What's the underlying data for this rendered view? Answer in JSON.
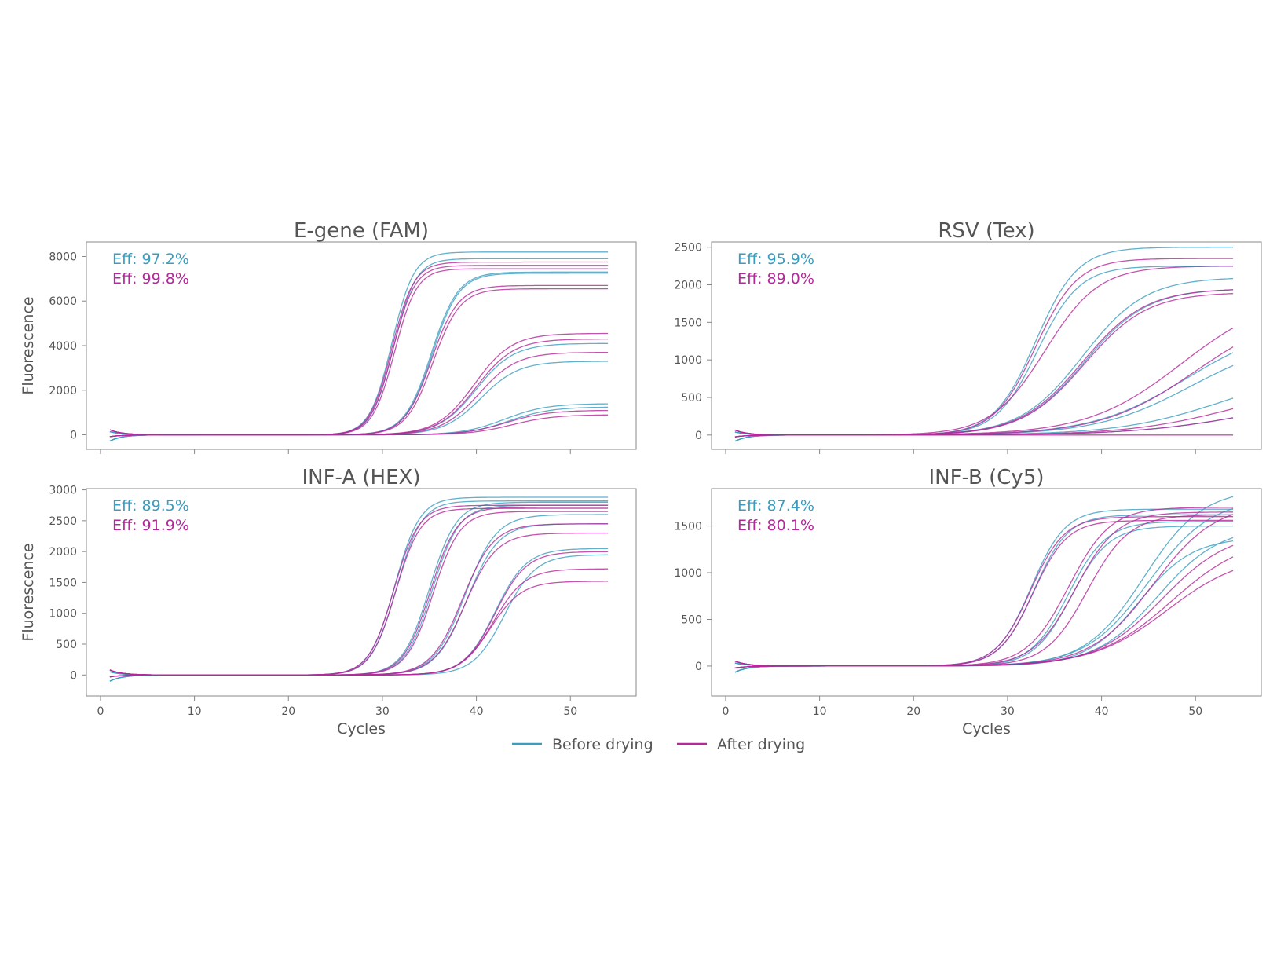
{
  "legend": {
    "before": "Before drying",
    "after": "After drying"
  },
  "colors": {
    "before": "#3a9dbf",
    "after": "#b5289a",
    "text": "#555555",
    "frame": "#888888"
  },
  "chart_data": [
    {
      "type": "line",
      "title": "E-gene (FAM)",
      "xlabel": "",
      "ylabel": "Fluorescence",
      "xlim": [
        -1.5,
        57
      ],
      "ylim": [
        -650,
        8650
      ],
      "xticks": [
        0,
        10,
        20,
        30,
        40,
        50
      ],
      "xtick_labels": [
        "",
        "",
        "",
        "",
        "",
        ""
      ],
      "yticks": [
        0,
        2000,
        4000,
        6000,
        8000
      ],
      "ytick_labels": [
        "0",
        "2000",
        "4000",
        "6000",
        "8000"
      ],
      "eff_before": "Eff: 97.2%",
      "eff_after": "Eff: 99.8%",
      "series": [
        {
          "name": "Before drying",
          "group": "before",
          "plateau": 8200,
          "ct": 31.0,
          "k": 0.85
        },
        {
          "name": "Before drying",
          "group": "before",
          "plateau": 7900,
          "ct": 31.2,
          "k": 0.85
        },
        {
          "name": "Before drying",
          "group": "before",
          "plateau": 7300,
          "ct": 35.2,
          "k": 0.7
        },
        {
          "name": "Before drying",
          "group": "before",
          "plateau": 7250,
          "ct": 35.3,
          "k": 0.7
        },
        {
          "name": "Before drying",
          "group": "before",
          "plateau": 4100,
          "ct": 40.0,
          "k": 0.5
        },
        {
          "name": "Before drying",
          "group": "before",
          "plateau": 3300,
          "ct": 40.5,
          "k": 0.5
        },
        {
          "name": "Before drying",
          "group": "before",
          "plateau": 1400,
          "ct": 43.0,
          "k": 0.45
        },
        {
          "name": "Before drying",
          "group": "before",
          "plateau": 1250,
          "ct": 43.5,
          "k": 0.45
        },
        {
          "name": "After drying",
          "group": "after",
          "plateau": 7750,
          "ct": 31.0,
          "k": 0.85
        },
        {
          "name": "After drying",
          "group": "after",
          "plateau": 7600,
          "ct": 31.1,
          "k": 0.85
        },
        {
          "name": "After drying",
          "group": "after",
          "plateau": 7450,
          "ct": 31.3,
          "k": 0.85
        },
        {
          "name": "After drying",
          "group": "after",
          "plateau": 6700,
          "ct": 35.2,
          "k": 0.7
        },
        {
          "name": "After drying",
          "group": "after",
          "plateau": 6550,
          "ct": 35.4,
          "k": 0.7
        },
        {
          "name": "After drying",
          "group": "after",
          "plateau": 4550,
          "ct": 39.8,
          "k": 0.5
        },
        {
          "name": "After drying",
          "group": "after",
          "plateau": 4300,
          "ct": 40.0,
          "k": 0.5
        },
        {
          "name": "After drying",
          "group": "after",
          "plateau": 3700,
          "ct": 40.3,
          "k": 0.5
        },
        {
          "name": "After drying",
          "group": "after",
          "plateau": 1100,
          "ct": 43.2,
          "k": 0.45
        },
        {
          "name": "After drying",
          "group": "after",
          "plateau": 900,
          "ct": 43.8,
          "k": 0.45
        }
      ]
    },
    {
      "type": "line",
      "title": "RSV (Tex)",
      "xlabel": "",
      "ylabel": "",
      "xlim": [
        -1.5,
        57
      ],
      "ylim": [
        -190,
        2570
      ],
      "xticks": [
        0,
        10,
        20,
        30,
        40,
        50
      ],
      "xtick_labels": [
        "",
        "",
        "",
        "",
        "",
        ""
      ],
      "yticks": [
        0,
        500,
        1000,
        1500,
        2000,
        2500
      ],
      "ytick_labels": [
        "0",
        "500",
        "1000",
        "1500",
        "2000",
        "2500"
      ],
      "eff_before": "Eff: 95.9%",
      "eff_after": "Eff: 89.0%",
      "series": [
        {
          "name": "Before drying",
          "group": "before",
          "plateau": 2500,
          "ct": 33.0,
          "k": 0.45
        },
        {
          "name": "Before drying",
          "group": "before",
          "plateau": 2250,
          "ct": 33.2,
          "k": 0.45
        },
        {
          "name": "Before drying",
          "group": "before",
          "plateau": 2100,
          "ct": 38.0,
          "k": 0.3
        },
        {
          "name": "Before drying",
          "group": "before",
          "plateau": 1950,
          "ct": 38.2,
          "k": 0.3
        },
        {
          "name": "Before drying",
          "group": "before",
          "plateau": 1500,
          "ct": 49.0,
          "k": 0.2
        },
        {
          "name": "Before drying",
          "group": "before",
          "plateau": 1300,
          "ct": 49.5,
          "k": 0.2
        },
        {
          "name": "Before drying",
          "group": "before",
          "plateau": 900,
          "ct": 53.0,
          "k": 0.18
        },
        {
          "name": "Before drying",
          "group": "before",
          "plateau": 500,
          "ct": 55.0,
          "k": 0.17
        },
        {
          "name": "After drying",
          "group": "after",
          "plateau": 2350,
          "ct": 33.0,
          "k": 0.45
        },
        {
          "name": "After drying",
          "group": "after",
          "plateau": 2250,
          "ct": 34.0,
          "k": 0.35
        },
        {
          "name": "After drying",
          "group": "after",
          "plateau": 1950,
          "ct": 38.0,
          "k": 0.3
        },
        {
          "name": "After drying",
          "group": "after",
          "plateau": 1900,
          "ct": 38.2,
          "k": 0.3
        },
        {
          "name": "After drying",
          "group": "after",
          "plateau": 1900,
          "ct": 48.5,
          "k": 0.2
        },
        {
          "name": "After drying",
          "group": "after",
          "plateau": 1700,
          "ct": 50.0,
          "k": 0.2
        },
        {
          "name": "After drying",
          "group": "after",
          "plateau": 700,
          "ct": 54.0,
          "k": 0.18
        },
        {
          "name": "After drying",
          "group": "after",
          "plateau": 500,
          "ct": 55.0,
          "k": 0.17
        },
        {
          "name": "After drying",
          "group": "after",
          "plateau": 0,
          "ct": 60.0,
          "k": 0.2
        }
      ]
    },
    {
      "type": "line",
      "title": "INF-A (HEX)",
      "xlabel": "Cycles",
      "ylabel": "Fluorescence",
      "xlim": [
        -1.5,
        57
      ],
      "ylim": [
        -340,
        3020
      ],
      "xticks": [
        0,
        10,
        20,
        30,
        40,
        50
      ],
      "xtick_labels": [
        "0",
        "10",
        "20",
        "30",
        "40",
        "50"
      ],
      "yticks": [
        0,
        500,
        1000,
        1500,
        2000,
        2500,
        3000
      ],
      "ytick_labels": [
        "0",
        "500",
        "1000",
        "1500",
        "2000",
        "2500",
        "3000"
      ],
      "eff_before": "Eff: 89.5%",
      "eff_after": "Eff: 91.9%",
      "series": [
        {
          "name": "Before drying",
          "group": "before",
          "plateau": 2880,
          "ct": 31.3,
          "k": 0.75
        },
        {
          "name": "Before drying",
          "group": "before",
          "plateau": 2820,
          "ct": 31.5,
          "k": 0.75
        },
        {
          "name": "Before drying",
          "group": "before",
          "plateau": 2800,
          "ct": 35.0,
          "k": 0.7
        },
        {
          "name": "Before drying",
          "group": "before",
          "plateau": 2750,
          "ct": 35.3,
          "k": 0.7
        },
        {
          "name": "Before drying",
          "group": "before",
          "plateau": 2600,
          "ct": 38.8,
          "k": 0.6
        },
        {
          "name": "Before drying",
          "group": "before",
          "plateau": 2450,
          "ct": 39.0,
          "k": 0.6
        },
        {
          "name": "Before drying",
          "group": "before",
          "plateau": 2050,
          "ct": 42.0,
          "k": 0.6
        },
        {
          "name": "Before drying",
          "group": "before",
          "plateau": 1950,
          "ct": 43.0,
          "k": 0.6
        },
        {
          "name": "After drying",
          "group": "after",
          "plateau": 2750,
          "ct": 31.2,
          "k": 0.75
        },
        {
          "name": "After drying",
          "group": "after",
          "plateau": 2700,
          "ct": 31.4,
          "k": 0.75
        },
        {
          "name": "After drying",
          "group": "after",
          "plateau": 2720,
          "ct": 35.1,
          "k": 0.7
        },
        {
          "name": "After drying",
          "group": "after",
          "plateau": 2650,
          "ct": 35.4,
          "k": 0.7
        },
        {
          "name": "After drying",
          "group": "after",
          "plateau": 2450,
          "ct": 38.5,
          "k": 0.6
        },
        {
          "name": "After drying",
          "group": "after",
          "plateau": 2300,
          "ct": 38.8,
          "k": 0.6
        },
        {
          "name": "After drying",
          "group": "after",
          "plateau": 2000,
          "ct": 42.0,
          "k": 0.6
        },
        {
          "name": "After drying",
          "group": "after",
          "plateau": 1720,
          "ct": 41.8,
          "k": 0.6
        },
        {
          "name": "After drying",
          "group": "after",
          "plateau": 1520,
          "ct": 41.5,
          "k": 0.6
        }
      ]
    },
    {
      "type": "line",
      "title": "INF-B (Cy5)",
      "xlabel": "Cycles",
      "ylabel": "",
      "xlim": [
        -1.5,
        57
      ],
      "ylim": [
        -320,
        1900
      ],
      "xticks": [
        0,
        10,
        20,
        30,
        40,
        50
      ],
      "xtick_labels": [
        "0",
        "10",
        "20",
        "30",
        "40",
        "50"
      ],
      "yticks": [
        0,
        500,
        1000,
        1500
      ],
      "ytick_labels": [
        "0",
        "500",
        "1000",
        "1500"
      ],
      "eff_before": "Eff: 87.4%",
      "eff_after": "Eff: 80.1%",
      "series": [
        {
          "name": "Before drying",
          "group": "before",
          "plateau": 1680,
          "ct": 32.5,
          "k": 0.55
        },
        {
          "name": "Before drying",
          "group": "before",
          "plateau": 1620,
          "ct": 32.8,
          "k": 0.55
        },
        {
          "name": "Before drying",
          "group": "before",
          "plateau": 1550,
          "ct": 36.5,
          "k": 0.5
        },
        {
          "name": "Before drying",
          "group": "before",
          "plateau": 1500,
          "ct": 36.8,
          "k": 0.5
        },
        {
          "name": "Before drying",
          "group": "before",
          "plateau": 1900,
          "ct": 44.5,
          "k": 0.32
        },
        {
          "name": "Before drying",
          "group": "before",
          "plateau": 1800,
          "ct": 45.0,
          "k": 0.3
        },
        {
          "name": "Before drying",
          "group": "before",
          "plateau": 1500,
          "ct": 46.0,
          "k": 0.3
        },
        {
          "name": "Before drying",
          "group": "before",
          "plateau": 1380,
          "ct": 44.0,
          "k": 0.35
        },
        {
          "name": "After drying",
          "group": "after",
          "plateau": 1600,
          "ct": 32.4,
          "k": 0.55
        },
        {
          "name": "After drying",
          "group": "after",
          "plateau": 1560,
          "ct": 32.7,
          "k": 0.55
        },
        {
          "name": "After drying",
          "group": "after",
          "plateau": 1700,
          "ct": 36.5,
          "k": 0.45
        },
        {
          "name": "After drying",
          "group": "after",
          "plateau": 1650,
          "ct": 37.2,
          "k": 0.45
        },
        {
          "name": "After drying",
          "group": "after",
          "plateau": 1620,
          "ct": 38.5,
          "k": 0.45
        },
        {
          "name": "After drying",
          "group": "after",
          "plateau": 1750,
          "ct": 45.5,
          "k": 0.3
        },
        {
          "name": "After drying",
          "group": "after",
          "plateau": 1450,
          "ct": 46.5,
          "k": 0.28
        },
        {
          "name": "After drying",
          "group": "after",
          "plateau": 1400,
          "ct": 47.5,
          "k": 0.25
        },
        {
          "name": "After drying",
          "group": "after",
          "plateau": 1200,
          "ct": 47.0,
          "k": 0.25
        }
      ]
    }
  ]
}
